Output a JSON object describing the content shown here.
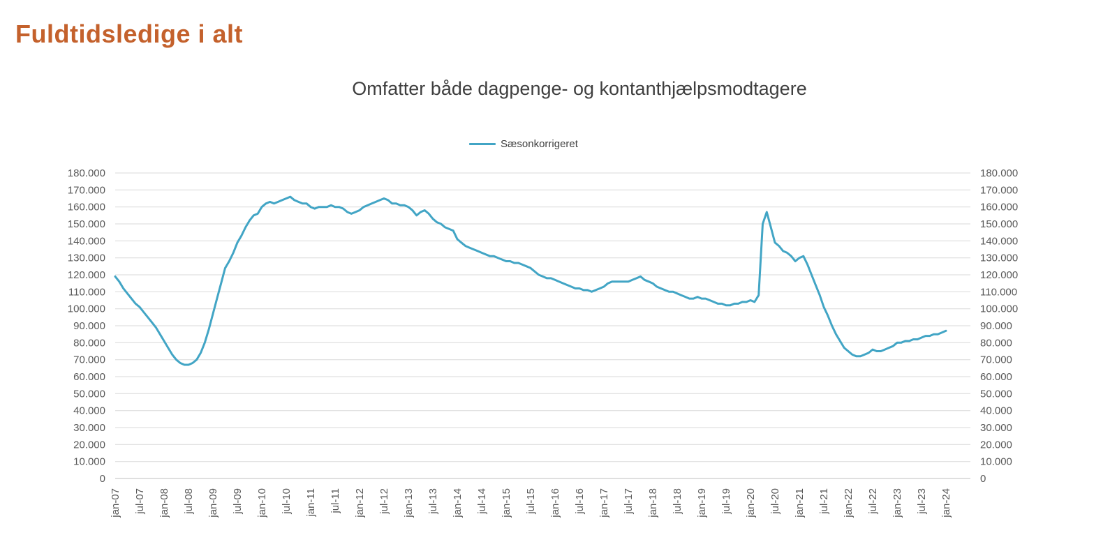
{
  "header": {
    "title": "Fuldtidsledige i alt"
  },
  "chart": {
    "title": "Omfatter både dagpenge- og kontanthjælpsmodtagere",
    "legend": [
      {
        "label": "Sæsonkorrigeret",
        "color": "#42a5c5"
      }
    ]
  },
  "chart_data": {
    "type": "line",
    "title": "Omfatter både dagpenge- og kontanthjælpsmodtagere",
    "x_start": "jan-07",
    "x_end": "jan-24",
    "x_frequency": "monthly",
    "x_tick_labels": [
      "jan-07",
      "jul-07",
      "jan-08",
      "jul-08",
      "jan-09",
      "jul-09",
      "jan-10",
      "jul-10",
      "jan-11",
      "jul-11",
      "jan-12",
      "jul-12",
      "jan-13",
      "jul-13",
      "jan-14",
      "jul-14",
      "jan-15",
      "jul-15",
      "jan-16",
      "jul-16",
      "jan-17",
      "jul-17",
      "jan-18",
      "jul-18",
      "jan-19",
      "jul-19",
      "jan-20",
      "jul-20",
      "jan-21",
      "jul-21",
      "jan-22",
      "jul-22",
      "jan-23",
      "jul-23",
      "jan-24"
    ],
    "x_ticks_every_n_points": 6,
    "y_tick_labels_bottom_to_top": [
      "0",
      "10.000",
      "20.000",
      "30.000",
      "40.000",
      "50.000",
      "60.000",
      "70.000",
      "80.000",
      "90.000",
      "100.000",
      "110.000",
      "120.000",
      "130.000",
      "140.000",
      "150.000",
      "160.000",
      "170.000",
      "180.000"
    ],
    "ylim": [
      0,
      180000
    ],
    "y_tick_step": 10000,
    "grid": "horizontal",
    "dual_y_axis": true,
    "legend_position": "top-center",
    "series": [
      {
        "name": "Sæsonkorrigeret",
        "color": "#42a5c5",
        "stroke_width": 3,
        "values": [
          119000,
          116000,
          112000,
          109000,
          106000,
          103000,
          101000,
          98000,
          95000,
          92000,
          89000,
          85000,
          81000,
          77000,
          73000,
          70000,
          68000,
          67000,
          67000,
          68000,
          70000,
          74000,
          80000,
          88000,
          97000,
          106000,
          115000,
          124000,
          128000,
          133000,
          139000,
          143000,
          148000,
          152000,
          155000,
          156000,
          160000,
          162000,
          163000,
          162000,
          163000,
          164000,
          165000,
          166000,
          164000,
          163000,
          162000,
          162000,
          160000,
          159000,
          160000,
          160000,
          160000,
          161000,
          160000,
          160000,
          159000,
          157000,
          156000,
          157000,
          158000,
          160000,
          161000,
          162000,
          163000,
          164000,
          165000,
          164000,
          162000,
          162000,
          161000,
          161000,
          160000,
          158000,
          155000,
          157000,
          158000,
          156000,
          153000,
          151000,
          150000,
          148000,
          147000,
          146000,
          141000,
          139000,
          137000,
          136000,
          135000,
          134000,
          133000,
          132000,
          131000,
          131000,
          130000,
          129000,
          128000,
          128000,
          127000,
          127000,
          126000,
          125000,
          124000,
          122000,
          120000,
          119000,
          118000,
          118000,
          117000,
          116000,
          115000,
          114000,
          113000,
          112000,
          112000,
          111000,
          111000,
          110000,
          111000,
          112000,
          113000,
          115000,
          116000,
          116000,
          116000,
          116000,
          116000,
          117000,
          118000,
          119000,
          117000,
          116000,
          115000,
          113000,
          112000,
          111000,
          110000,
          110000,
          109000,
          108000,
          107000,
          106000,
          106000,
          107000,
          106000,
          106000,
          105000,
          104000,
          103000,
          103000,
          102000,
          102000,
          103000,
          103000,
          104000,
          104000,
          105000,
          104000,
          108000,
          150000,
          157000,
          148000,
          139000,
          137000,
          134000,
          133000,
          131000,
          128000,
          130000,
          131000,
          126000,
          120000,
          114000,
          108000,
          101000,
          96000,
          90000,
          85000,
          81000,
          77000,
          75000,
          73000,
          72000,
          72000,
          73000,
          74000,
          76000,
          75000,
          75000,
          76000,
          77000,
          78000,
          80000,
          80000,
          81000,
          81000,
          82000,
          82000,
          83000,
          84000,
          84000,
          85000,
          85000,
          86000,
          87000
        ]
      }
    ]
  }
}
